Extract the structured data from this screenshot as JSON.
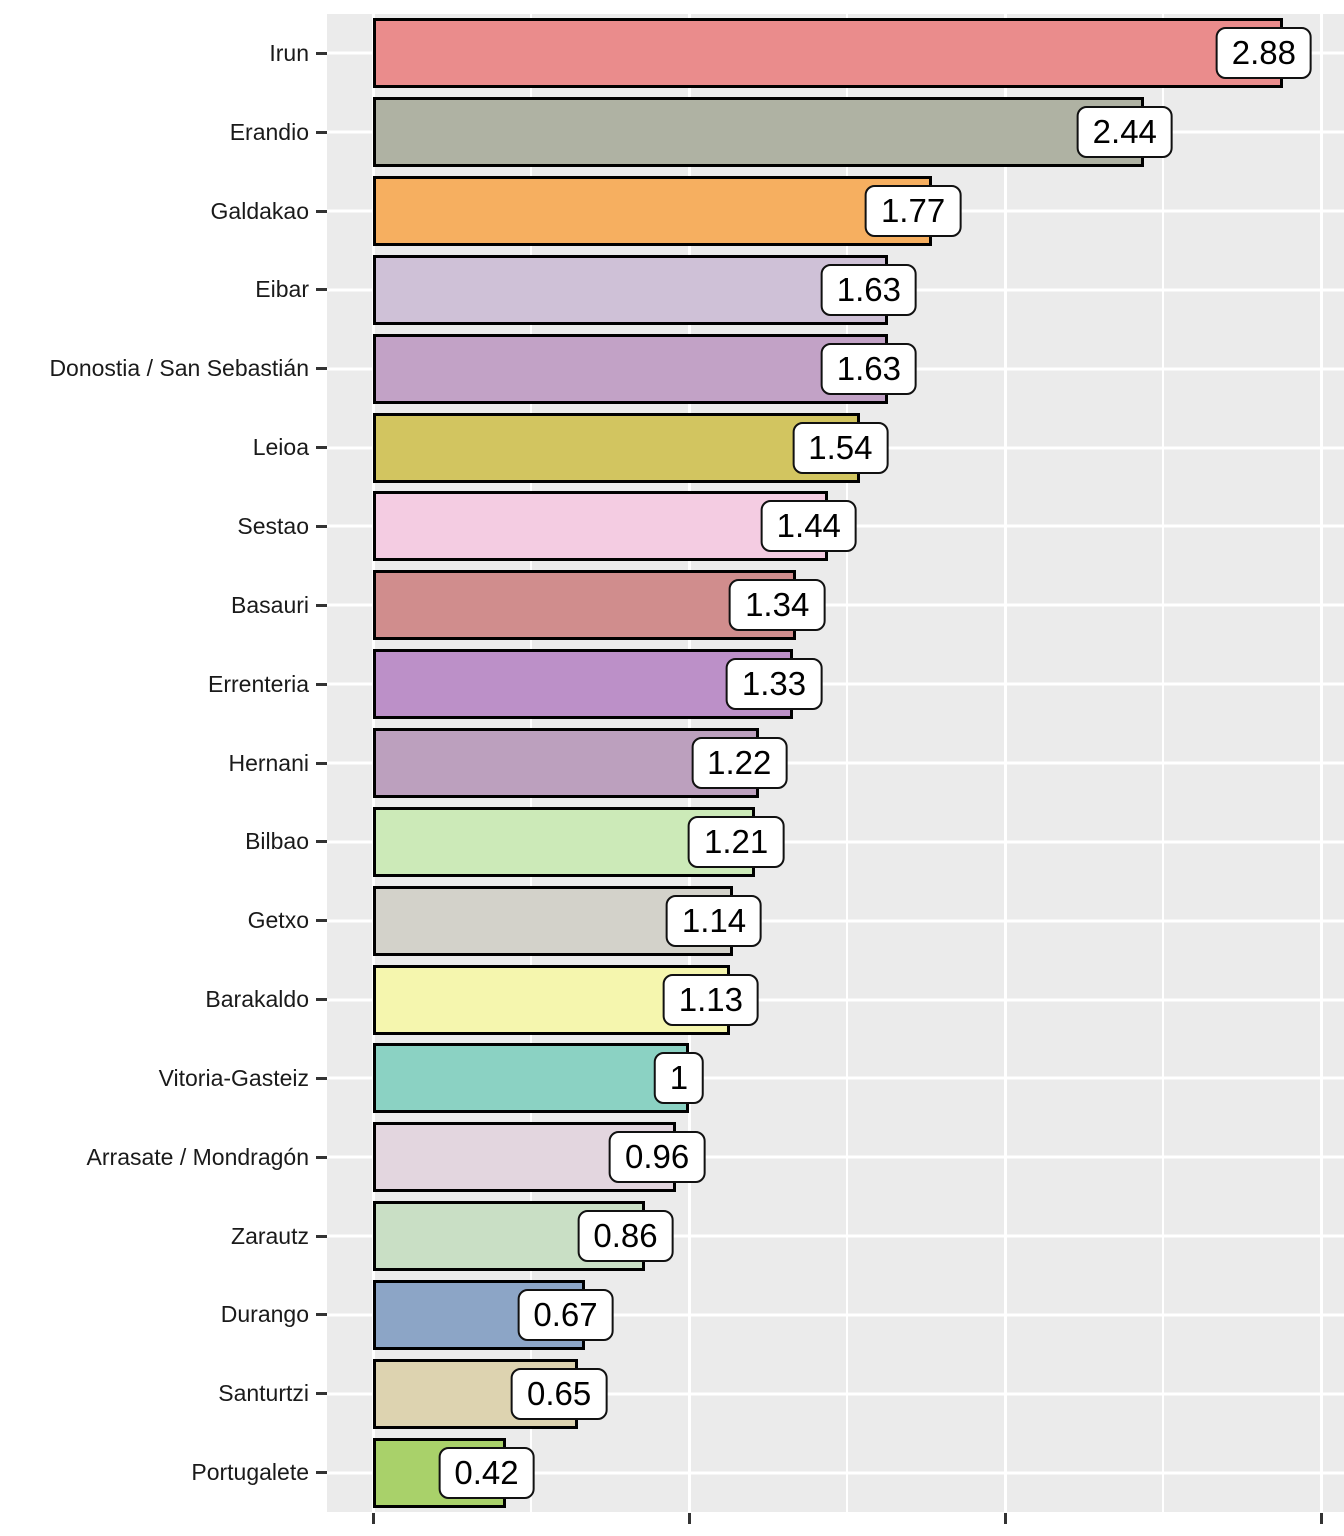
{
  "chart_data": {
    "type": "bar",
    "orientation": "horizontal",
    "title": "",
    "xlabel": "",
    "ylabel": "",
    "categories": [
      "Irun",
      "Erandio",
      "Galdakao",
      "Eibar",
      "Donostia / San Sebastián",
      "Leioa",
      "Sestao",
      "Basauri",
      "Errenteria",
      "Hernani",
      "Bilbao",
      "Getxo",
      "Barakaldo",
      "Vitoria-Gasteiz",
      "Arrasate / Mondragón",
      "Zarautz",
      "Durango",
      "Santurtzi",
      "Portugalete"
    ],
    "values": [
      2.88,
      2.44,
      1.77,
      1.63,
      1.63,
      1.54,
      1.44,
      1.34,
      1.33,
      1.22,
      1.21,
      1.14,
      1.13,
      1,
      0.96,
      0.86,
      0.67,
      0.65,
      0.42
    ],
    "value_labels": [
      "2.88",
      "2.44",
      "1.77",
      "1.63",
      "1.63",
      "1.54",
      "1.44",
      "1.34",
      "1.33",
      "1.22",
      "1.21",
      "1.14",
      "1.13",
      "1",
      "0.96",
      "0.86",
      "0.67",
      "0.65",
      "0.42"
    ],
    "bar_colors": [
      "#EA8C8C",
      "#AFB2A3",
      "#F6AF60",
      "#CFC1D7",
      "#C2A2C6",
      "#D2C560",
      "#F4CCE2",
      "#D08D8D",
      "#BC90C8",
      "#BCA0BE",
      "#CCEAB8",
      "#D3D2CA",
      "#F5F6AE",
      "#8BD2C3",
      "#E3D6DF",
      "#C9DFC5",
      "#8CA5C6",
      "#DDD3B0",
      "#A9D16A"
    ],
    "xlim": [
      -0.15,
      3.07
    ],
    "x_major_ticks": [
      0,
      1,
      2,
      3
    ],
    "x_minor_ticks": [
      0.5,
      1.5,
      2.5
    ],
    "x_tick_labels": [
      "",
      "",
      "",
      ""
    ],
    "grid": true,
    "legend": "none",
    "panel_bg": "#EBEBEB",
    "grid_color": "#FFFFFF",
    "bar_border_color": "#000000",
    "label_box_bg": "#FFFFFF",
    "label_box_border": "#111111",
    "axis_text_color": "#1A1A1A",
    "tick_color": "#333333"
  }
}
